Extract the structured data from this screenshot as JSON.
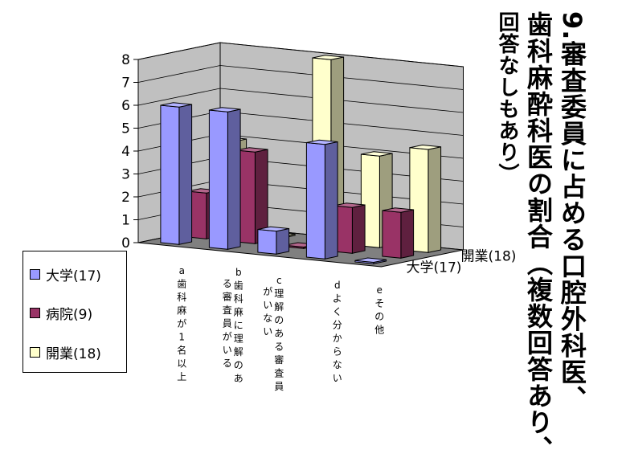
{
  "title": {
    "line1": "9.審査委員に占める口腔外科医、",
    "line2": "歯科麻酔科医の割合（複数回答あり、",
    "line3": "回答なしもあり）"
  },
  "chart_data": {
    "type": "bar",
    "style": "3d-clustered",
    "categories": [
      "a歯科麻が1名以上",
      "b歯科麻に理解のある審査員がいる",
      "c理解のある審査員がいない",
      "dよく分からない",
      "eその他"
    ],
    "series": [
      {
        "name": "大学(17)",
        "values": [
          6,
          6,
          1,
          5,
          0
        ]
      },
      {
        "name": "病院(9)",
        "values": [
          2,
          4,
          0,
          2,
          2
        ]
      },
      {
        "name": "開業(18)",
        "values": [
          4,
          0,
          8,
          4,
          4.5
        ]
      }
    ],
    "depth_labels": [
      "大学(17)",
      "開業(18)"
    ],
    "ylim": [
      0,
      8
    ],
    "yticks": [
      "0",
      "1",
      "2",
      "3",
      "4",
      "5",
      "6",
      "7",
      "8"
    ],
    "grid": true,
    "legend": "bottom-left",
    "colors": {
      "series": [
        "#9999ff",
        "#993366",
        "#ffffcc"
      ],
      "wall": "#c0c0c0",
      "floor": "#808080"
    }
  }
}
